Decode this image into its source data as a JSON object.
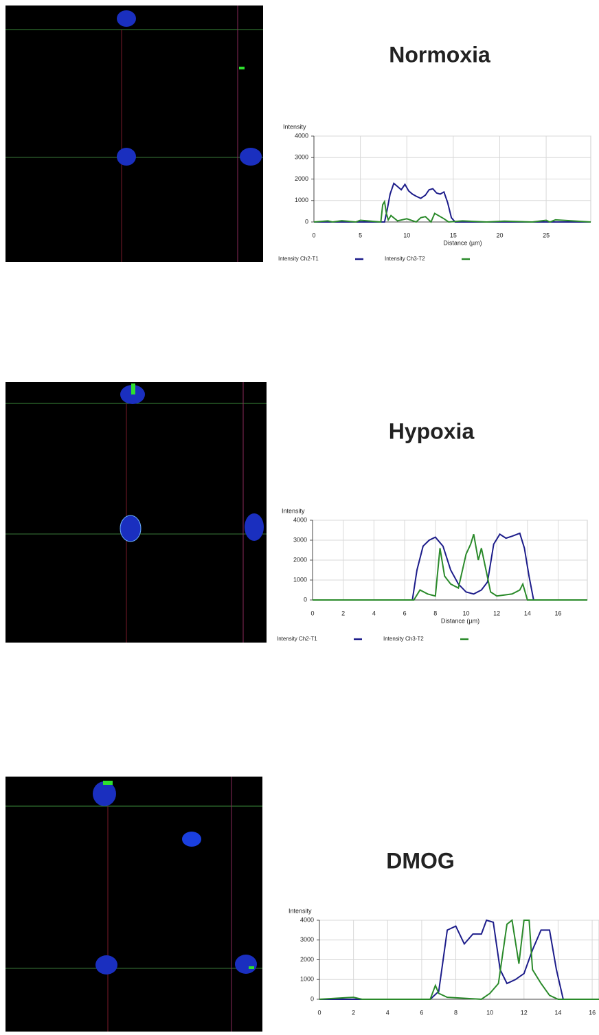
{
  "chart_data": [
    {
      "type": "line",
      "title": "Normoxia",
      "ylabel": "Intensity",
      "xlabel": "Distance (µm)",
      "xlim": [
        0,
        29.8
      ],
      "xticks": [
        0,
        5,
        10,
        15,
        20,
        25
      ],
      "ylim": [
        0,
        4000
      ],
      "yticks": [
        0,
        1000,
        2000,
        3000,
        4000
      ],
      "grid": true,
      "series": [
        {
          "name": "Intensity Ch2-T1",
          "color": "#1c1c8a",
          "x": [
            0,
            7.6,
            7.9,
            8.2,
            8.6,
            9.0,
            9.4,
            9.8,
            10.2,
            10.6,
            11.0,
            11.5,
            12.0,
            12.4,
            12.8,
            13.2,
            13.6,
            14.0,
            14.4,
            14.8,
            15.2,
            29.8
          ],
          "values": [
            0,
            0,
            600,
            1300,
            1800,
            1650,
            1500,
            1750,
            1450,
            1300,
            1200,
            1100,
            1250,
            1500,
            1550,
            1350,
            1300,
            1400,
            900,
            200,
            0,
            0
          ]
        },
        {
          "name": "Intensity Ch3-T2",
          "color": "#2a8a2a",
          "x": [
            0,
            1.5,
            2,
            3,
            4.5,
            5,
            7.2,
            7.4,
            7.6,
            7.8,
            8.0,
            8.3,
            9,
            10,
            11,
            11.5,
            12,
            12.6,
            13,
            14,
            14.5,
            16,
            18.6,
            20.5,
            23.5,
            25,
            25.4,
            26,
            29.8
          ],
          "values": [
            0,
            50,
            0,
            60,
            0,
            80,
            0,
            800,
            950,
            400,
            100,
            300,
            50,
            150,
            0,
            200,
            250,
            0,
            400,
            150,
            0,
            50,
            0,
            40,
            0,
            80,
            0,
            100,
            0
          ]
        }
      ]
    },
    {
      "type": "line",
      "title": "Hypoxia",
      "ylabel": "Intensity",
      "xlabel": "Distance (µm)",
      "xlim": [
        0,
        17.9
      ],
      "xticks": [
        0,
        2,
        4,
        6,
        8,
        10,
        12,
        14,
        16
      ],
      "ylim": [
        0,
        4000
      ],
      "yticks": [
        0,
        1000,
        2000,
        3000,
        4000
      ],
      "grid": true,
      "series": [
        {
          "name": "Intensity Ch2-T1",
          "color": "#1c1c8a",
          "x": [
            0,
            6.5,
            6.8,
            7.2,
            7.6,
            8.0,
            8.5,
            9.0,
            9.5,
            10.0,
            10.5,
            11.0,
            11.4,
            11.8,
            12.2,
            12.6,
            13.0,
            13.5,
            13.8,
            14.1,
            14.4,
            17.9
          ],
          "values": [
            0,
            0,
            1500,
            2700,
            3000,
            3150,
            2700,
            1500,
            800,
            400,
            300,
            500,
            900,
            2800,
            3300,
            3100,
            3200,
            3350,
            2600,
            1200,
            0,
            0
          ]
        },
        {
          "name": "Intensity Ch3-T2",
          "color": "#2a8a2a",
          "x": [
            0,
            6.6,
            7.0,
            7.5,
            8.0,
            8.3,
            8.6,
            9.0,
            9.5,
            10.0,
            10.3,
            10.5,
            10.8,
            11.0,
            11.3,
            11.6,
            12.0,
            13.0,
            13.5,
            13.7,
            14.0,
            17.9
          ],
          "values": [
            0,
            0,
            500,
            300,
            200,
            2600,
            1200,
            800,
            600,
            2300,
            2800,
            3300,
            2000,
            2600,
            1500,
            400,
            200,
            300,
            500,
            800,
            0,
            0
          ]
        }
      ]
    },
    {
      "type": "line",
      "title": "DMOG",
      "ylabel": "Intensity",
      "xlim": [
        0,
        16.4
      ],
      "xticks": [
        0,
        2,
        4,
        6,
        8,
        10,
        12,
        14,
        16
      ],
      "ylim": [
        0,
        4000
      ],
      "yticks": [
        0,
        1000,
        2000,
        3000,
        4000
      ],
      "grid": true,
      "series": [
        {
          "color": "#1c1c8a",
          "x": [
            0,
            6.5,
            7.0,
            7.5,
            8.0,
            8.5,
            9.0,
            9.5,
            9.8,
            10.2,
            10.6,
            11.0,
            11.5,
            12.0,
            12.5,
            13.0,
            13.5,
            13.9,
            14.3,
            16.4
          ],
          "values": [
            0,
            0,
            400,
            3500,
            3700,
            2800,
            3300,
            3300,
            4000,
            3900,
            1500,
            800,
            1000,
            1300,
            2500,
            3500,
            3500,
            1500,
            0,
            0
          ]
        },
        {
          "color": "#2a8a2a",
          "x": [
            0,
            2,
            2.5,
            6.5,
            6.8,
            7.0,
            7.5,
            9.5,
            10.0,
            10.5,
            11.0,
            11.3,
            11.7,
            12.0,
            12.3,
            12.5,
            13.0,
            13.5,
            14.0,
            16.4
          ],
          "values": [
            0,
            100,
            0,
            0,
            700,
            300,
            100,
            0,
            300,
            800,
            3800,
            4000,
            1800,
            4000,
            4000,
            1500,
            800,
            200,
            0,
            0
          ]
        }
      ]
    }
  ]
}
